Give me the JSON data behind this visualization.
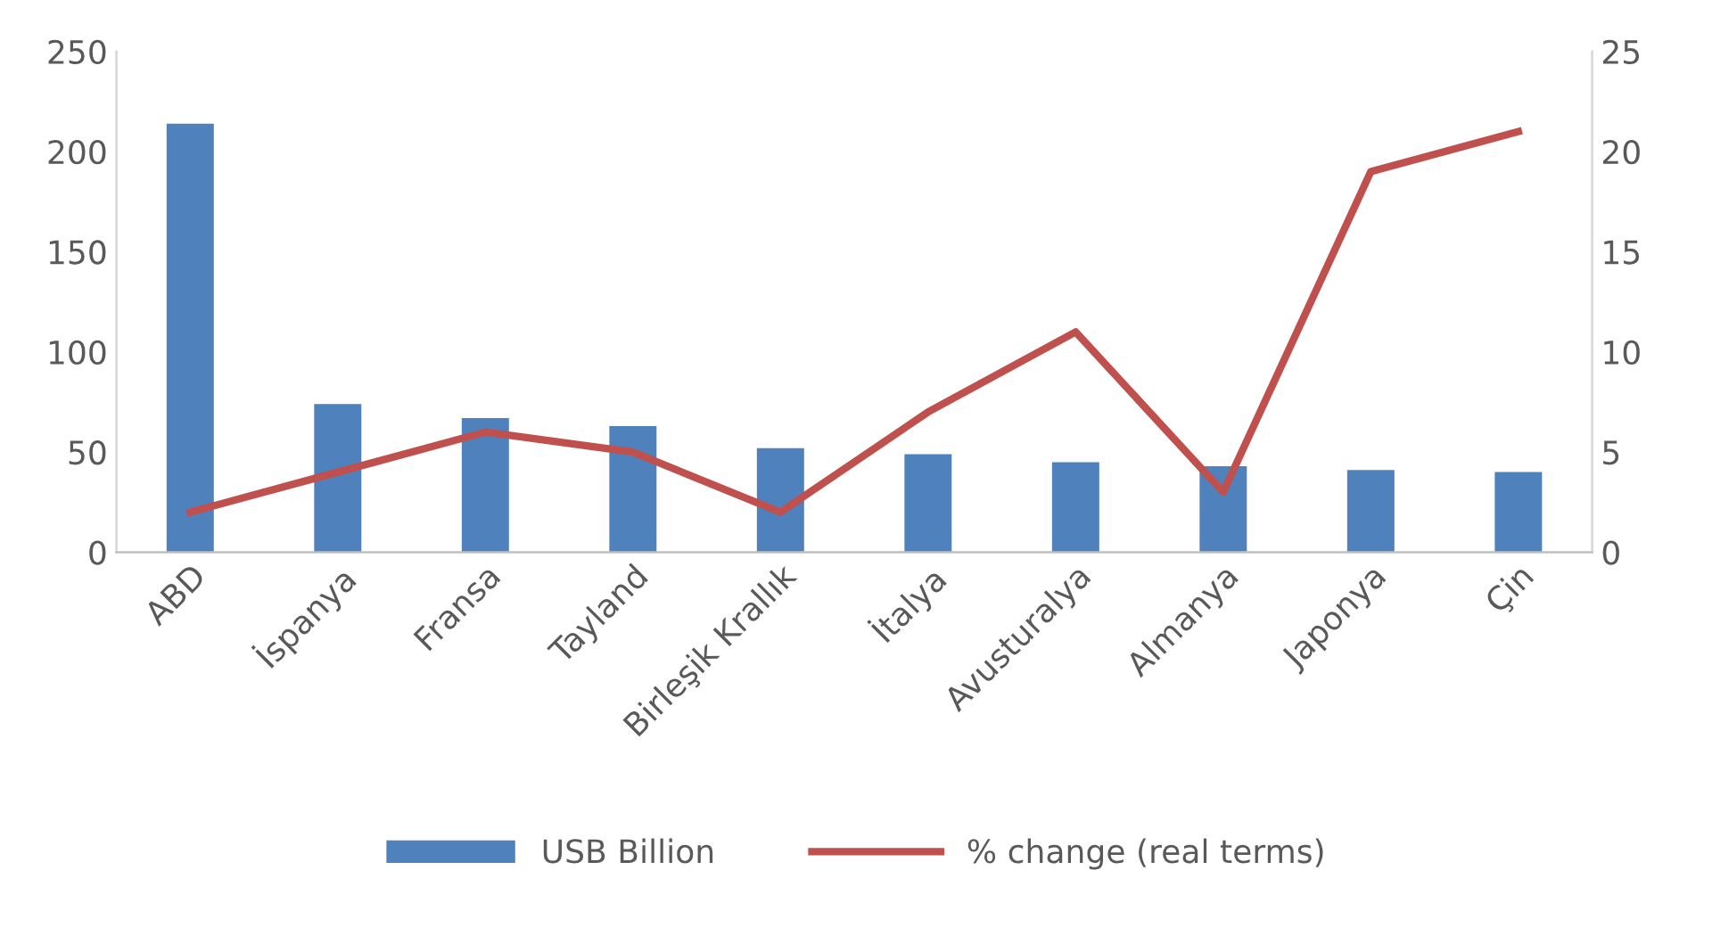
{
  "chart_data": {
    "type": "bar",
    "categories": [
      "ABD",
      "İspanya",
      "Fransa",
      "Tayland",
      "Birleşik Krallık",
      "İtalya",
      "Avusturalya",
      "Almanya",
      "Japonya",
      "Çin"
    ],
    "series": [
      {
        "name": "USB Billion",
        "color": "#4f81bd",
        "values": [
          214,
          74,
          67,
          63,
          52,
          49,
          45,
          43,
          41,
          40
        ]
      },
      {
        "name": "% change (real terms)",
        "type": "line",
        "axis": "y2",
        "color": "#c0504d",
        "values": [
          2,
          4,
          6,
          5,
          2,
          7,
          11,
          3,
          19,
          21
        ]
      }
    ],
    "ylim": [
      0,
      250
    ],
    "yticks": [
      0,
      50,
      100,
      150,
      200,
      250
    ],
    "y2lim": [
      0,
      25
    ],
    "y2ticks": [
      0,
      5,
      10,
      15,
      20,
      25
    ],
    "grid": false,
    "legend": "bottom",
    "marker": "none",
    "line_style": "solid"
  }
}
